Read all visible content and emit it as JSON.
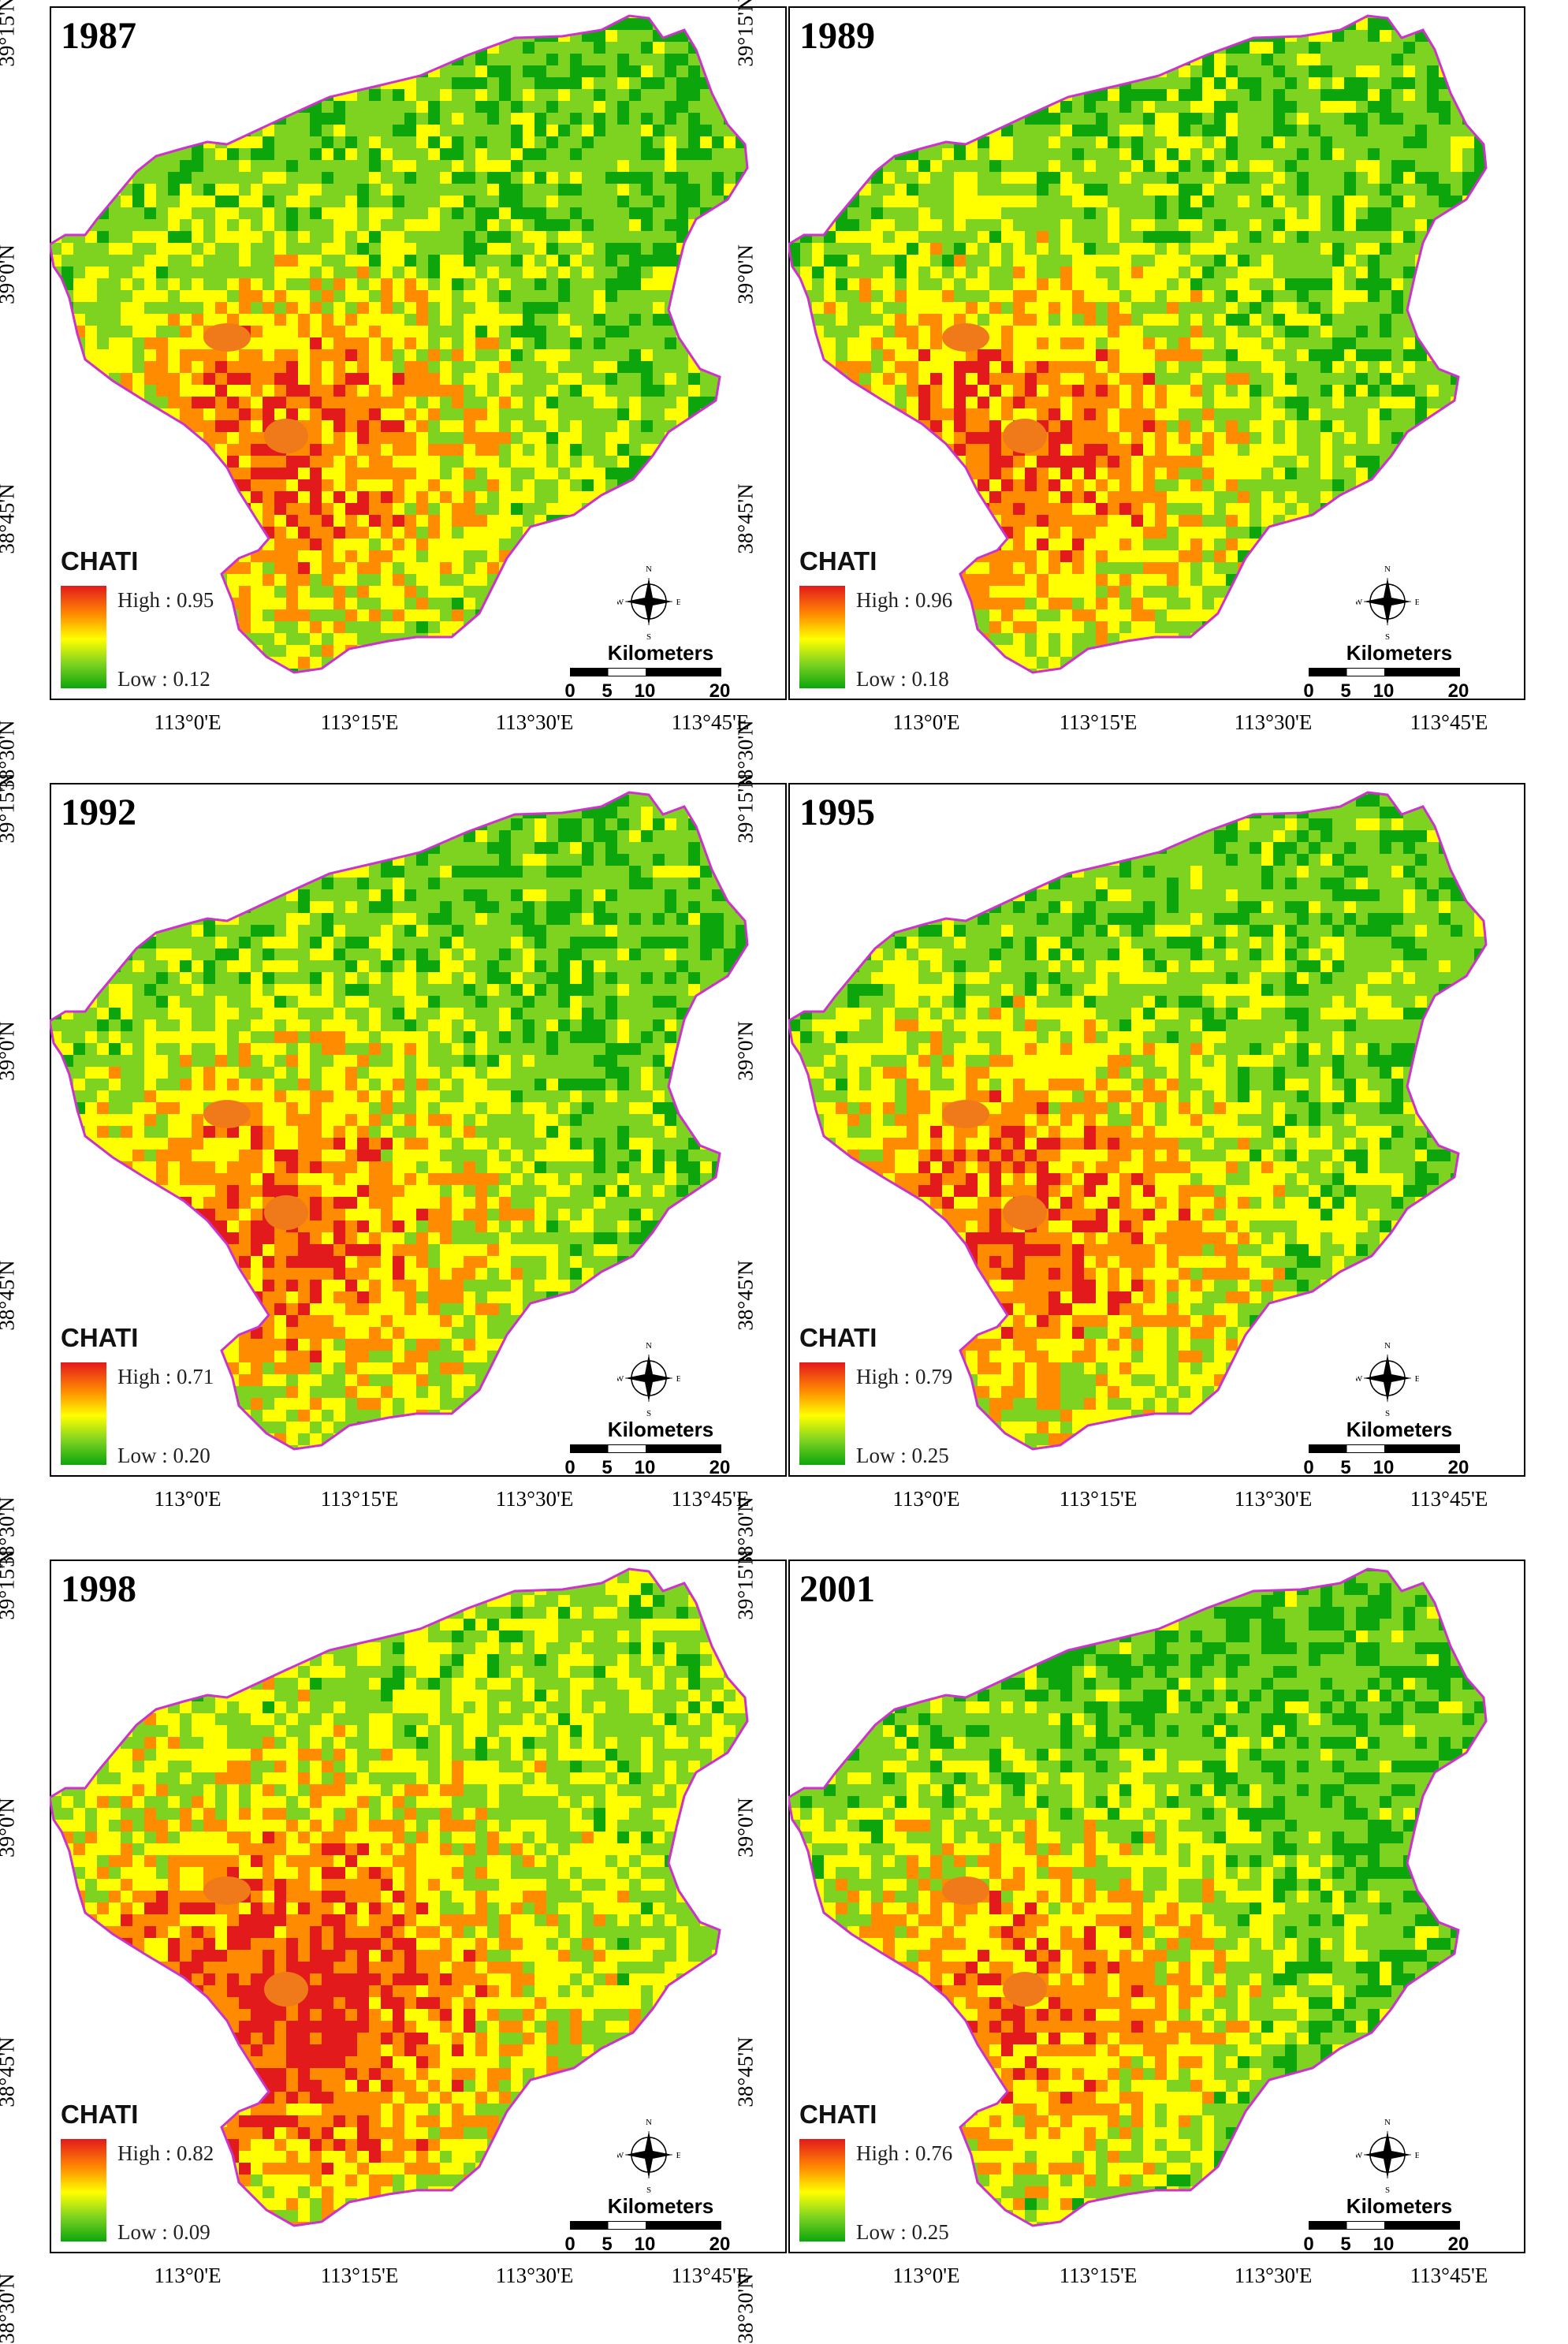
{
  "legend_title": "CHATI",
  "scale_title": "Kilometers",
  "scale_ticks": [
    "0",
    "5",
    "10",
    "20"
  ],
  "lat_labels": [
    "39°15'N",
    "39°0'N",
    "38°45'N",
    "38°30'N"
  ],
  "lon_labels": [
    "113°0'E",
    "113°15'E",
    "113°30'E",
    "113°45'E"
  ],
  "compass": {
    "n": "N",
    "s": "S",
    "e": "E",
    "w": "W"
  },
  "colors": {
    "high": "#e31a1c",
    "mid_high": "#ff8c00",
    "mid": "#ffff00",
    "mid_low": "#7ed321",
    "low": "#0ca60c",
    "boundary": "#cc33cc"
  },
  "maps": [
    {
      "year": "1987",
      "high": "High : 0.95",
      "low": "Low : 0.12",
      "greenness": 0.75
    },
    {
      "year": "1989",
      "high": "High : 0.96",
      "low": "Low : 0.18",
      "greenness": 0.72
    },
    {
      "year": "1992",
      "high": "High : 0.71",
      "low": "Low : 0.20",
      "greenness": 0.74
    },
    {
      "year": "1995",
      "high": "High : 0.79",
      "low": "Low : 0.25",
      "greenness": 0.7
    },
    {
      "year": "1998",
      "high": "High : 0.82",
      "low": "Low : 0.09",
      "greenness": 0.45
    },
    {
      "year": "2001",
      "high": "High : 0.76",
      "low": "Low : 0.25",
      "greenness": 0.8
    }
  ]
}
